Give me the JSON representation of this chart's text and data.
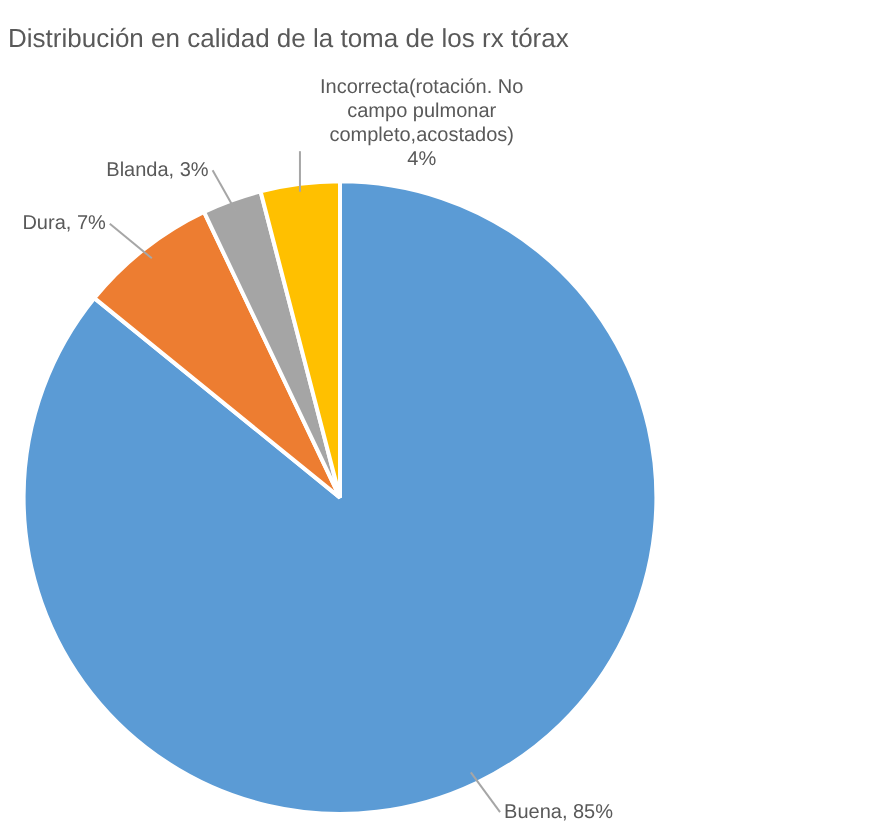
{
  "chart_data": {
    "type": "pie",
    "title": "Distribución en calidad de la toma de los rx tórax",
    "categories": [
      "Buena",
      "Dura",
      "Blanda",
      "Incorrecta(rotación. No campo pulmonar completo,acostados)"
    ],
    "values": [
      85,
      7,
      3,
      4
    ],
    "value_labels": [
      "85%",
      "7%",
      "3%",
      "4%"
    ],
    "colors": [
      "#5b9bd5",
      "#ed7d31",
      "#a5a5a5",
      "#ffc000"
    ],
    "legend": false
  }
}
